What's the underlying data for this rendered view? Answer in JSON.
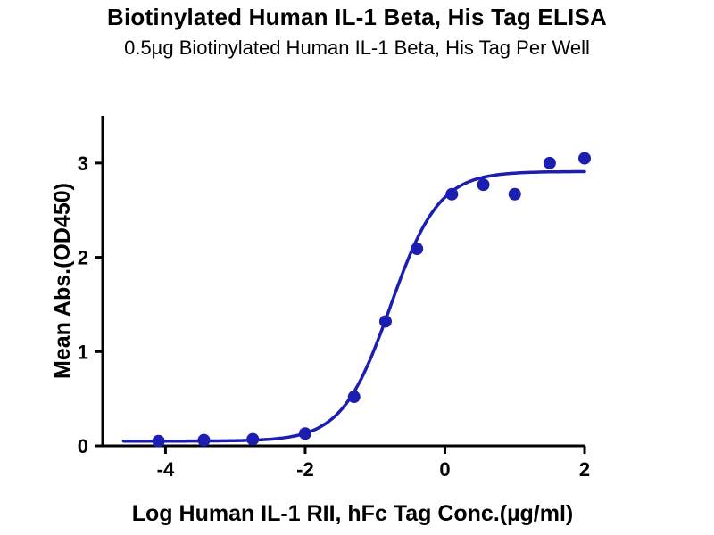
{
  "chart_data": {
    "type": "scatter",
    "title": "Biotinylated Human IL-1 Beta, His Tag ELISA",
    "subtitle": "0.5µg Biotinylated Human IL-1 Beta, His Tag Per Well",
    "xlabel": "Log Human IL-1 RII, hFc Tag Conc.(µg/ml)",
    "ylabel": "Mean Abs.(OD450)",
    "xlim": [
      -4.9,
      2.0
    ],
    "ylim": [
      0,
      3.5
    ],
    "x_ticks": [
      -4,
      -2,
      0,
      2
    ],
    "y_ticks": [
      0,
      1,
      2,
      3
    ],
    "grid": false,
    "legend": "none",
    "points": [
      {
        "x": -4.1,
        "y": 0.05
      },
      {
        "x": -3.45,
        "y": 0.06
      },
      {
        "x": -2.75,
        "y": 0.07
      },
      {
        "x": -2.0,
        "y": 0.13
      },
      {
        "x": -1.3,
        "y": 0.52
      },
      {
        "x": -0.85,
        "y": 1.32
      },
      {
        "x": -0.4,
        "y": 2.09
      },
      {
        "x": 0.1,
        "y": 2.67
      },
      {
        "x": 0.55,
        "y": 2.77
      },
      {
        "x": 1.0,
        "y": 2.67
      },
      {
        "x": 1.5,
        "y": 3.0
      },
      {
        "x": 2.0,
        "y": 3.05
      }
    ],
    "fit_curve": {
      "model": "4PL",
      "bottom": 0.05,
      "top": 2.91,
      "log_ec50": -0.78,
      "hill_slope": 1.25,
      "x_range": [
        -4.6,
        2.0
      ]
    },
    "marker": {
      "shape": "circle",
      "radius": 7
    },
    "colors": {
      "series": "#1c1eb0",
      "axis": "#000000",
      "text": "#000000",
      "background": "#ffffff"
    }
  }
}
